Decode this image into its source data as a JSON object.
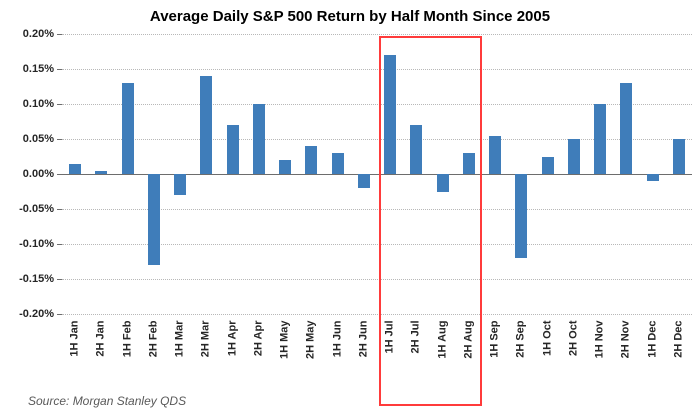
{
  "title": "Average Daily S&P 500 Return by Half Month Since 2005",
  "source": "Source: Morgan Stanley QDS",
  "colors": {
    "bar": "#3f7dba",
    "highlight": "#ff3b3b",
    "grid": "#b8b8b8",
    "axis": "#6d6d6d",
    "text": "#262626",
    "source_text": "#595959"
  },
  "chart_data": {
    "type": "bar",
    "title": "Average Daily S&P 500 Return by Half Month Since 2005",
    "categories": [
      "1H Jan",
      "2H Jan",
      "1H Feb",
      "2H Feb",
      "1H Mar",
      "2H Mar",
      "1H Apr",
      "2H Apr",
      "1H May",
      "2H May",
      "1H Jun",
      "2H Jun",
      "1H Jul",
      "2H Jul",
      "1H Aug",
      "2H Aug",
      "1H Sep",
      "2H Sep",
      "1H Oct",
      "2H Oct",
      "1H Nov",
      "2H Nov",
      "1H Dec",
      "2H Dec"
    ],
    "values": [
      0.015,
      0.005,
      0.13,
      -0.13,
      -0.03,
      0.14,
      0.07,
      0.1,
      0.02,
      0.04,
      0.03,
      -0.02,
      0.17,
      0.07,
      -0.025,
      0.03,
      0.055,
      -0.12,
      0.025,
      0.05,
      0.1,
      0.13,
      -0.01,
      0.05
    ],
    "xlabel": "",
    "ylabel": "",
    "ylim": [
      -0.2,
      0.2
    ],
    "ytick_step": 0.05,
    "ytick_format": "0.00%",
    "grid": true,
    "legend": false,
    "highlight_range": {
      "start": "1H Jul",
      "end": "2H Aug"
    },
    "source": "Source: Morgan Stanley QDS"
  }
}
